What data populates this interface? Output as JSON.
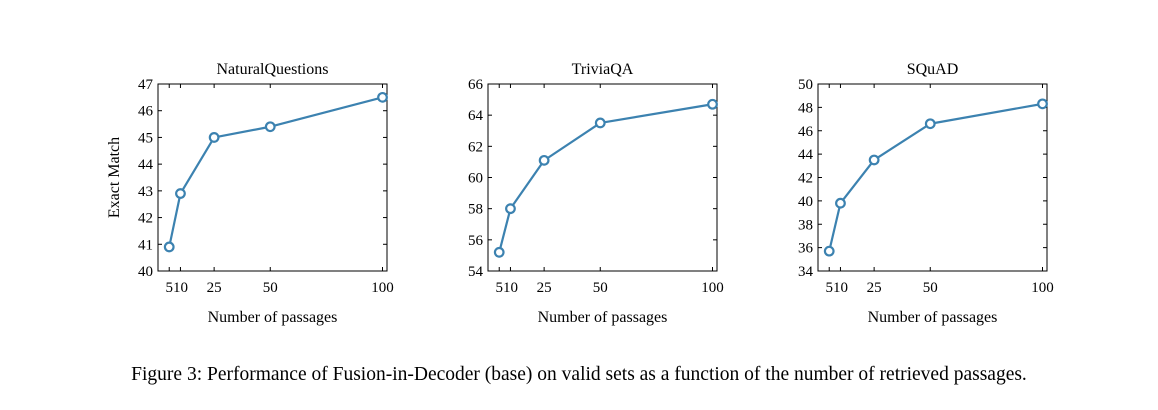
{
  "caption": "Figure 3: Performance of Fusion-in-Decoder (base) on valid sets as a function of the number of retrieved passages.",
  "colors": {
    "line": "#3c82b0",
    "axis": "#000000"
  },
  "chart_data": [
    {
      "type": "line",
      "title": "NaturalQuestions",
      "xlabel": "Number of passages",
      "ylabel": "Exact Match",
      "xlim": [
        0,
        102
      ],
      "ylim": [
        40,
        47
      ],
      "xticks": [
        5,
        10,
        25,
        50,
        100
      ],
      "yticks": [
        40,
        41,
        42,
        43,
        44,
        45,
        46,
        47
      ],
      "series": [
        {
          "x": [
            5,
            10,
            25,
            50,
            100
          ],
          "y": [
            40.9,
            42.9,
            45.0,
            45.4,
            46.5
          ]
        }
      ]
    },
    {
      "type": "line",
      "title": "TriviaQA",
      "xlabel": "Number of passages",
      "ylabel": "",
      "xlim": [
        0,
        102
      ],
      "ylim": [
        54,
        66
      ],
      "xticks": [
        5,
        10,
        25,
        50,
        100
      ],
      "yticks": [
        54,
        56,
        58,
        60,
        62,
        64,
        66
      ],
      "series": [
        {
          "x": [
            5,
            10,
            25,
            50,
            100
          ],
          "y": [
            55.2,
            58.0,
            61.1,
            63.5,
            64.7
          ]
        }
      ]
    },
    {
      "type": "line",
      "title": "SQuAD",
      "xlabel": "Number of passages",
      "ylabel": "",
      "xlim": [
        0,
        102
      ],
      "ylim": [
        34,
        50
      ],
      "xticks": [
        5,
        10,
        25,
        50,
        100
      ],
      "yticks": [
        34,
        36,
        38,
        40,
        42,
        44,
        46,
        48,
        50
      ],
      "series": [
        {
          "x": [
            5,
            10,
            25,
            50,
            100
          ],
          "y": [
            35.7,
            39.8,
            43.5,
            46.6,
            48.3
          ]
        }
      ]
    }
  ]
}
